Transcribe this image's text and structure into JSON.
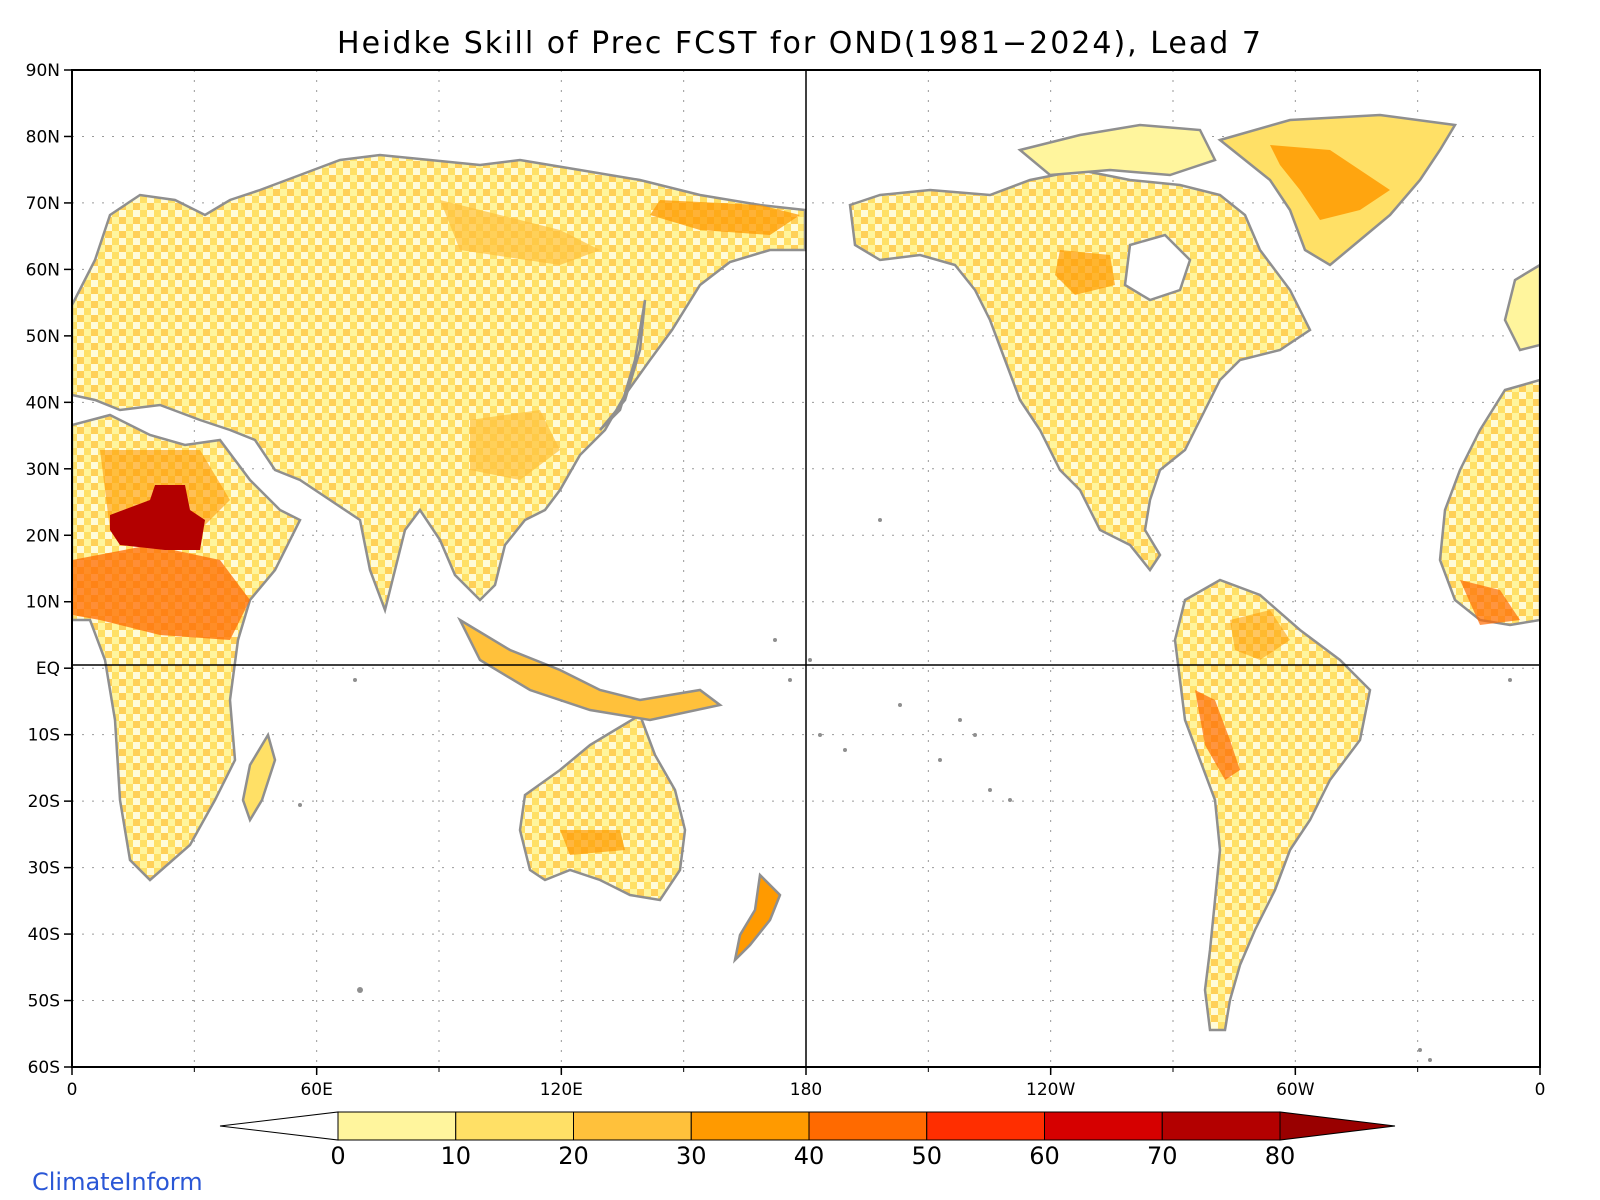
{
  "title": "Heidke Skill of Prec FCST for OND(1981−2024), Lead 7",
  "credit": "ClimateInform",
  "lat_labels": [
    "90N",
    "80N",
    "70N",
    "60N",
    "50N",
    "40N",
    "30N",
    "20N",
    "10N",
    "EQ",
    "10S",
    "20S",
    "30S",
    "40S",
    "50S",
    "60S"
  ],
  "lon_labels": [
    "0",
    "60E",
    "120E",
    "180",
    "120W",
    "60W",
    "0"
  ],
  "colorbar": {
    "ticks": [
      "0",
      "10",
      "20",
      "30",
      "40",
      "50",
      "60",
      "70",
      "80"
    ],
    "colors": [
      "#ffffff",
      "#fff59d",
      "#ffe066",
      "#ffc13b",
      "#ff9a00",
      "#ff6a00",
      "#ff2e00",
      "#d60000",
      "#b30000",
      "#990000"
    ]
  },
  "map_style": {
    "coastline_color": "#8f8f8f",
    "lake_color": "#000000",
    "grid_style": "dotted",
    "reference_lines": [
      "Equator",
      "180"
    ]
  }
}
